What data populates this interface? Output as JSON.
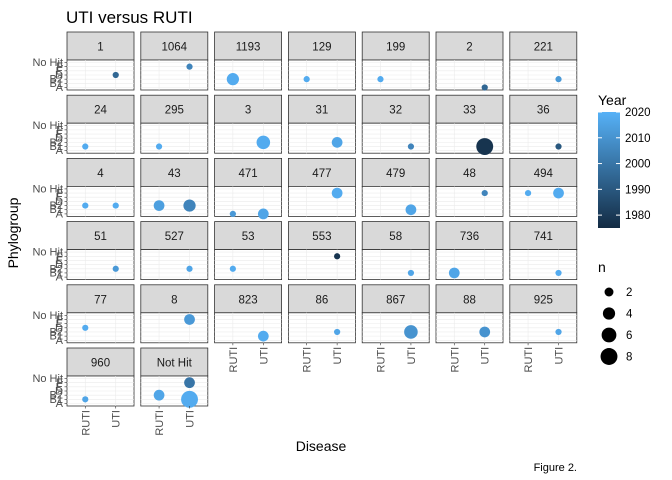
{
  "chart_data": {
    "type": "scatter",
    "title": "UTI versus RUTI",
    "xlabel": "Disease",
    "ylabel": "Phylogroup",
    "x_categories": [
      "RUTI",
      "UTI"
    ],
    "y_categories": [
      "A",
      "B1",
      "B2",
      "D",
      "E",
      "F",
      "No Hit"
    ],
    "y_tick_labels": [
      "A",
      "B1",
      "B2",
      "D",
      "E",
      "F",
      "No Hit"
    ],
    "caption": "Figure 2.",
    "facets": [
      {
        "label": "1",
        "points": [
          {
            "x": "UTI",
            "y": "D",
            "n": 1,
            "year": 1995
          }
        ]
      },
      {
        "label": "1064",
        "points": [
          {
            "x": "UTI",
            "y": "F",
            "n": 1,
            "year": 2005
          }
        ]
      },
      {
        "label": "1193",
        "points": [
          {
            "x": "RUTI",
            "y": "B2",
            "n": 4,
            "year": 2018
          }
        ]
      },
      {
        "label": "129",
        "points": [
          {
            "x": "RUTI",
            "y": "B2",
            "n": 1,
            "year": 2018
          }
        ]
      },
      {
        "label": "199",
        "points": [
          {
            "x": "RUTI",
            "y": "B2",
            "n": 1,
            "year": 2018
          }
        ]
      },
      {
        "label": "2",
        "points": [
          {
            "x": "UTI",
            "y": "A",
            "n": 1,
            "year": 1995
          }
        ]
      },
      {
        "label": "221",
        "points": [
          {
            "x": "UTI",
            "y": "B2",
            "n": 1,
            "year": 2012
          }
        ]
      },
      {
        "label": "24",
        "points": [
          {
            "x": "RUTI",
            "y": "B1",
            "n": 1,
            "year": 2018
          }
        ]
      },
      {
        "label": "295",
        "points": [
          {
            "x": "RUTI",
            "y": "B1",
            "n": 1,
            "year": 2018
          }
        ]
      },
      {
        "label": "3",
        "points": [
          {
            "x": "UTI",
            "y": "B2",
            "n": 5,
            "year": 2018
          }
        ]
      },
      {
        "label": "31",
        "points": [
          {
            "x": "UTI",
            "y": "B2",
            "n": 3,
            "year": 2016
          }
        ]
      },
      {
        "label": "32",
        "points": [
          {
            "x": "UTI",
            "y": "B1",
            "n": 1,
            "year": 2005
          }
        ]
      },
      {
        "label": "33",
        "points": [
          {
            "x": "UTI",
            "y": "B1",
            "n": 8,
            "year": 1978
          }
        ]
      },
      {
        "label": "36",
        "points": [
          {
            "x": "UTI",
            "y": "B1",
            "n": 1,
            "year": 1990
          }
        ]
      },
      {
        "label": "4",
        "points": [
          {
            "x": "RUTI",
            "y": "B2",
            "n": 1,
            "year": 2018
          },
          {
            "x": "UTI",
            "y": "B2",
            "n": 1,
            "year": 2018
          }
        ]
      },
      {
        "label": "43",
        "points": [
          {
            "x": "RUTI",
            "y": "B2",
            "n": 3,
            "year": 2014
          },
          {
            "x": "UTI",
            "y": "B2",
            "n": 4,
            "year": 2005
          }
        ]
      },
      {
        "label": "471",
        "points": [
          {
            "x": "RUTI",
            "y": "A",
            "n": 1,
            "year": 2012
          },
          {
            "x": "UTI",
            "y": "A",
            "n": 3,
            "year": 2016
          }
        ]
      },
      {
        "label": "477",
        "points": [
          {
            "x": "UTI",
            "y": "F",
            "n": 3,
            "year": 2018
          }
        ]
      },
      {
        "label": "479",
        "points": [
          {
            "x": "UTI",
            "y": "B1",
            "n": 3,
            "year": 2016
          }
        ]
      },
      {
        "label": "48",
        "points": [
          {
            "x": "UTI",
            "y": "F",
            "n": 1,
            "year": 2005
          }
        ]
      },
      {
        "label": "494",
        "points": [
          {
            "x": "RUTI",
            "y": "F",
            "n": 1,
            "year": 2018
          },
          {
            "x": "UTI",
            "y": "F",
            "n": 3,
            "year": 2018
          }
        ]
      },
      {
        "label": "51",
        "points": [
          {
            "x": "UTI",
            "y": "B2",
            "n": 1,
            "year": 2012
          }
        ]
      },
      {
        "label": "527",
        "points": [
          {
            "x": "UTI",
            "y": "B2",
            "n": 1,
            "year": 2016
          }
        ]
      },
      {
        "label": "53",
        "points": [
          {
            "x": "RUTI",
            "y": "B2",
            "n": 1,
            "year": 2018
          }
        ]
      },
      {
        "label": "553",
        "points": [
          {
            "x": "UTI",
            "y": "F",
            "n": 1,
            "year": 1978
          }
        ]
      },
      {
        "label": "58",
        "points": [
          {
            "x": "UTI",
            "y": "B1",
            "n": 1,
            "year": 2016
          }
        ]
      },
      {
        "label": "736",
        "points": [
          {
            "x": "RUTI",
            "y": "B1",
            "n": 3,
            "year": 2016
          }
        ]
      },
      {
        "label": "741",
        "points": [
          {
            "x": "UTI",
            "y": "B1",
            "n": 1,
            "year": 2018
          }
        ]
      },
      {
        "label": "77",
        "points": [
          {
            "x": "RUTI",
            "y": "D",
            "n": 1,
            "year": 2018
          }
        ]
      },
      {
        "label": "8",
        "points": [
          {
            "x": "UTI",
            "y": "F",
            "n": 3,
            "year": 2012
          }
        ]
      },
      {
        "label": "823",
        "points": [
          {
            "x": "UTI",
            "y": "B1",
            "n": 3,
            "year": 2018
          }
        ]
      },
      {
        "label": "86",
        "points": [
          {
            "x": "UTI",
            "y": "B2",
            "n": 1,
            "year": 2016
          }
        ]
      },
      {
        "label": "867",
        "points": [
          {
            "x": "UTI",
            "y": "B2",
            "n": 5,
            "year": 2010
          }
        ]
      },
      {
        "label": "88",
        "points": [
          {
            "x": "UTI",
            "y": "B2",
            "n": 3,
            "year": 2010
          }
        ]
      },
      {
        "label": "925",
        "points": [
          {
            "x": "UTI",
            "y": "B2",
            "n": 1,
            "year": 2016
          }
        ]
      },
      {
        "label": "960",
        "points": [
          {
            "x": "RUTI",
            "y": "B1",
            "n": 1,
            "year": 2016
          }
        ]
      },
      {
        "label": "Not Hit",
        "points": [
          {
            "x": "RUTI",
            "y": "B2",
            "n": 3,
            "year": 2016
          },
          {
            "x": "UTI",
            "y": "F",
            "n": 3,
            "year": 2000
          },
          {
            "x": "UTI",
            "y": "B1",
            "n": 8,
            "year": 2018
          }
        ]
      }
    ],
    "legend": {
      "color": {
        "title": "Year",
        "min": 1975,
        "max": 2020,
        "breaks": [
          1980,
          1990,
          2000,
          2010,
          2020
        ],
        "low_color": "#132b43",
        "high_color": "#56b1f7"
      },
      "size": {
        "title": "n",
        "breaks": [
          2,
          4,
          6,
          8
        ],
        "max": 8
      }
    },
    "panel_background": "#ffffff",
    "strip_background": "#d9d9d9",
    "grid": true
  }
}
